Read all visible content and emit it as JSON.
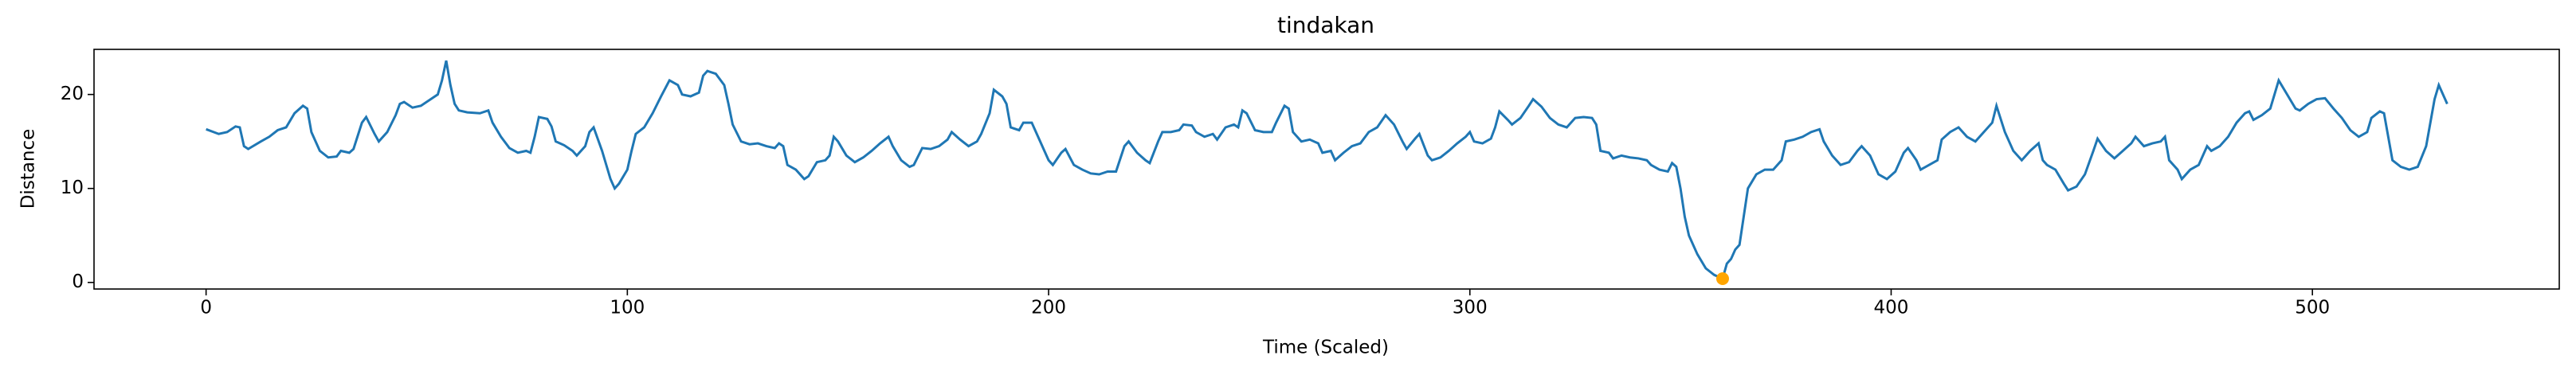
{
  "chart_data": {
    "type": "line",
    "title": "tindakan",
    "xlabel": "Time (Scaled)",
    "ylabel": "Distance",
    "x": [
      0,
      3,
      5,
      7,
      8,
      9,
      10,
      13,
      15,
      17,
      19,
      21,
      23,
      24,
      25,
      27,
      29,
      31,
      32,
      34,
      35,
      37,
      38,
      40,
      41,
      43,
      45,
      46,
      47,
      49,
      51,
      53,
      55,
      56,
      57,
      58,
      59,
      60,
      62,
      65,
      67,
      68,
      70,
      72,
      74,
      76,
      77,
      78,
      79,
      81,
      82,
      83,
      85,
      87,
      88,
      90,
      91,
      92,
      94,
      96,
      97,
      98,
      100,
      101,
      102,
      104,
      106,
      108,
      110,
      112,
      113,
      115,
      117,
      118,
      119,
      121,
      123,
      124,
      125,
      127,
      129,
      131,
      133,
      135,
      136,
      137,
      138,
      140,
      142,
      143,
      145,
      147,
      148,
      149,
      150,
      152,
      154,
      156,
      158,
      160,
      162,
      163,
      165,
      167,
      168,
      170,
      172,
      174,
      176,
      177,
      179,
      181,
      183,
      184,
      186,
      187,
      189,
      190,
      191,
      193,
      194,
      196,
      197,
      199,
      200,
      201,
      203,
      204,
      206,
      208,
      210,
      212,
      214,
      216,
      218,
      219,
      221,
      223,
      224,
      226,
      227,
      229,
      231,
      232,
      234,
      235,
      237,
      239,
      240,
      242,
      244,
      245,
      246,
      247,
      249,
      251,
      253,
      254,
      256,
      257,
      258,
      260,
      262,
      264,
      265,
      267,
      268,
      270,
      272,
      274,
      276,
      278,
      280,
      282,
      284,
      285,
      287,
      288,
      290,
      291,
      293,
      295,
      297,
      299,
      300,
      301,
      303,
      305,
      306,
      307,
      309,
      310,
      312,
      314,
      315,
      317,
      319,
      321,
      323,
      325,
      327,
      329,
      330,
      331,
      333,
      334,
      336,
      338,
      340,
      342,
      343,
      345,
      347,
      348,
      349,
      350,
      351,
      352,
      354,
      356,
      358,
      360,
      361,
      362,
      363,
      364,
      365,
      366,
      368,
      370,
      372,
      374,
      375,
      377,
      379,
      381,
      383,
      384,
      386,
      388,
      390,
      392,
      393,
      395,
      397,
      399,
      401,
      403,
      404,
      406,
      407,
      409,
      411,
      412,
      414,
      416,
      418,
      420,
      422,
      424,
      425,
      427,
      429,
      431,
      433,
      435,
      436,
      437,
      439,
      441,
      442,
      444,
      446,
      448,
      449,
      451,
      453,
      455,
      457,
      458,
      460,
      462,
      464,
      465,
      466,
      468,
      469,
      471,
      473,
      475,
      476,
      478,
      480,
      482,
      484,
      485,
      486,
      488,
      490,
      491,
      492,
      494,
      496,
      497,
      499,
      501,
      503,
      505,
      507,
      509,
      511,
      513,
      514,
      516,
      517,
      518,
      519,
      521,
      523,
      525,
      527,
      528,
      529,
      530,
      532
    ],
    "series": [
      {
        "color": "#1f77b4",
        "values": [
          16.3,
          15.8,
          16.0,
          16.6,
          16.5,
          14.5,
          14.2,
          15.0,
          15.5,
          16.2,
          16.5,
          18.0,
          18.8,
          18.5,
          16.0,
          14.0,
          13.3,
          13.4,
          14.0,
          13.8,
          14.2,
          17.0,
          17.6,
          15.8,
          15.0,
          16.0,
          17.8,
          19.0,
          19.2,
          18.6,
          18.8,
          19.4,
          20.0,
          21.5,
          23.6,
          21.0,
          19.0,
          18.3,
          18.1,
          18.0,
          18.3,
          17.0,
          15.5,
          14.3,
          13.8,
          14.0,
          13.8,
          15.5,
          17.6,
          17.4,
          16.6,
          15.0,
          14.6,
          14.0,
          13.5,
          14.5,
          16.0,
          16.5,
          14.0,
          11.0,
          10.0,
          10.5,
          12.0,
          14.0,
          15.8,
          16.5,
          18.0,
          19.8,
          21.5,
          21.0,
          20.0,
          19.8,
          20.2,
          22.0,
          22.5,
          22.2,
          21.0,
          19.0,
          16.8,
          15.0,
          14.7,
          14.8,
          14.5,
          14.3,
          14.8,
          14.5,
          12.5,
          12.0,
          11.0,
          11.3,
          12.8,
          13.0,
          13.5,
          15.5,
          15.0,
          13.5,
          12.8,
          13.3,
          14.0,
          14.8,
          15.5,
          14.5,
          13.0,
          12.3,
          12.5,
          14.3,
          14.2,
          14.5,
          15.2,
          16.0,
          15.2,
          14.5,
          15.0,
          15.8,
          18.0,
          20.5,
          19.8,
          19.0,
          16.5,
          16.2,
          17.0,
          17.0,
          16.0,
          14.0,
          13.0,
          12.5,
          13.8,
          14.2,
          12.5,
          12.0,
          11.6,
          11.5,
          11.8,
          11.8,
          14.5,
          15.0,
          13.8,
          13.0,
          12.7,
          15.0,
          16.0,
          16.0,
          16.2,
          16.8,
          16.7,
          16.0,
          15.5,
          15.8,
          15.2,
          16.5,
          16.8,
          16.5,
          18.3,
          18.0,
          16.2,
          16.0,
          16.0,
          17.0,
          18.8,
          18.5,
          16.0,
          15.0,
          15.2,
          14.8,
          13.8,
          14.0,
          13.0,
          13.8,
          14.5,
          14.8,
          16.0,
          16.5,
          17.8,
          16.8,
          15.0,
          14.2,
          15.3,
          15.8,
          13.5,
          13.0,
          13.3,
          14.0,
          14.8,
          15.5,
          16.0,
          15.0,
          14.8,
          15.3,
          16.5,
          18.2,
          17.3,
          16.8,
          17.5,
          18.8,
          19.5,
          18.7,
          17.5,
          16.8,
          16.5,
          17.5,
          17.6,
          17.5,
          16.8,
          14.0,
          13.8,
          13.2,
          13.5,
          13.3,
          13.2,
          13.0,
          12.5,
          12.0,
          11.8,
          12.7,
          12.3,
          10.0,
          7.0,
          5.0,
          3.0,
          1.5,
          0.8,
          0.4,
          2.0,
          2.5,
          3.5,
          4.0,
          7.0,
          10.0,
          11.5,
          12.0,
          12.0,
          13.0,
          15.0,
          15.2,
          15.5,
          16.0,
          16.3,
          15.0,
          13.5,
          12.5,
          12.8,
          14.0,
          14.5,
          13.5,
          11.5,
          11.0,
          11.8,
          13.8,
          14.3,
          13.0,
          12.0,
          12.5,
          13.0,
          15.2,
          16.0,
          16.5,
          15.5,
          15.0,
          16.0,
          17.0,
          18.8,
          16.0,
          14.0,
          13.0,
          14.0,
          14.8,
          13.0,
          12.5,
          12.0,
          10.5,
          9.8,
          10.2,
          11.5,
          14.0,
          15.3,
          14.0,
          13.2,
          14.0,
          14.8,
          15.5,
          14.5,
          14.8,
          15.0,
          15.5,
          13.0,
          12.0,
          11.0,
          12.0,
          12.5,
          14.5,
          14.0,
          14.5,
          15.5,
          17.0,
          18.0,
          18.2,
          17.3,
          17.8,
          18.5,
          20.0,
          21.5,
          20.0,
          18.5,
          18.3,
          19.0,
          19.5,
          19.6,
          18.5,
          17.5,
          16.2,
          15.5,
          16.0,
          17.5,
          18.2,
          18.0,
          15.5,
          13.0,
          12.3,
          12.0,
          12.3,
          14.5,
          17.0,
          19.5,
          21.0,
          19.0
        ]
      }
    ],
    "points": {
      "color": "#ffa500",
      "x": [
        360
      ],
      "values": [
        0.4
      ]
    },
    "xlim": [
      -26.6,
      558.6
    ],
    "xticks": [
      0,
      100,
      200,
      300,
      400,
      500
    ],
    "ylim": [
      -0.7,
      24.8
    ],
    "yticks": [
      0,
      10,
      20
    ]
  }
}
